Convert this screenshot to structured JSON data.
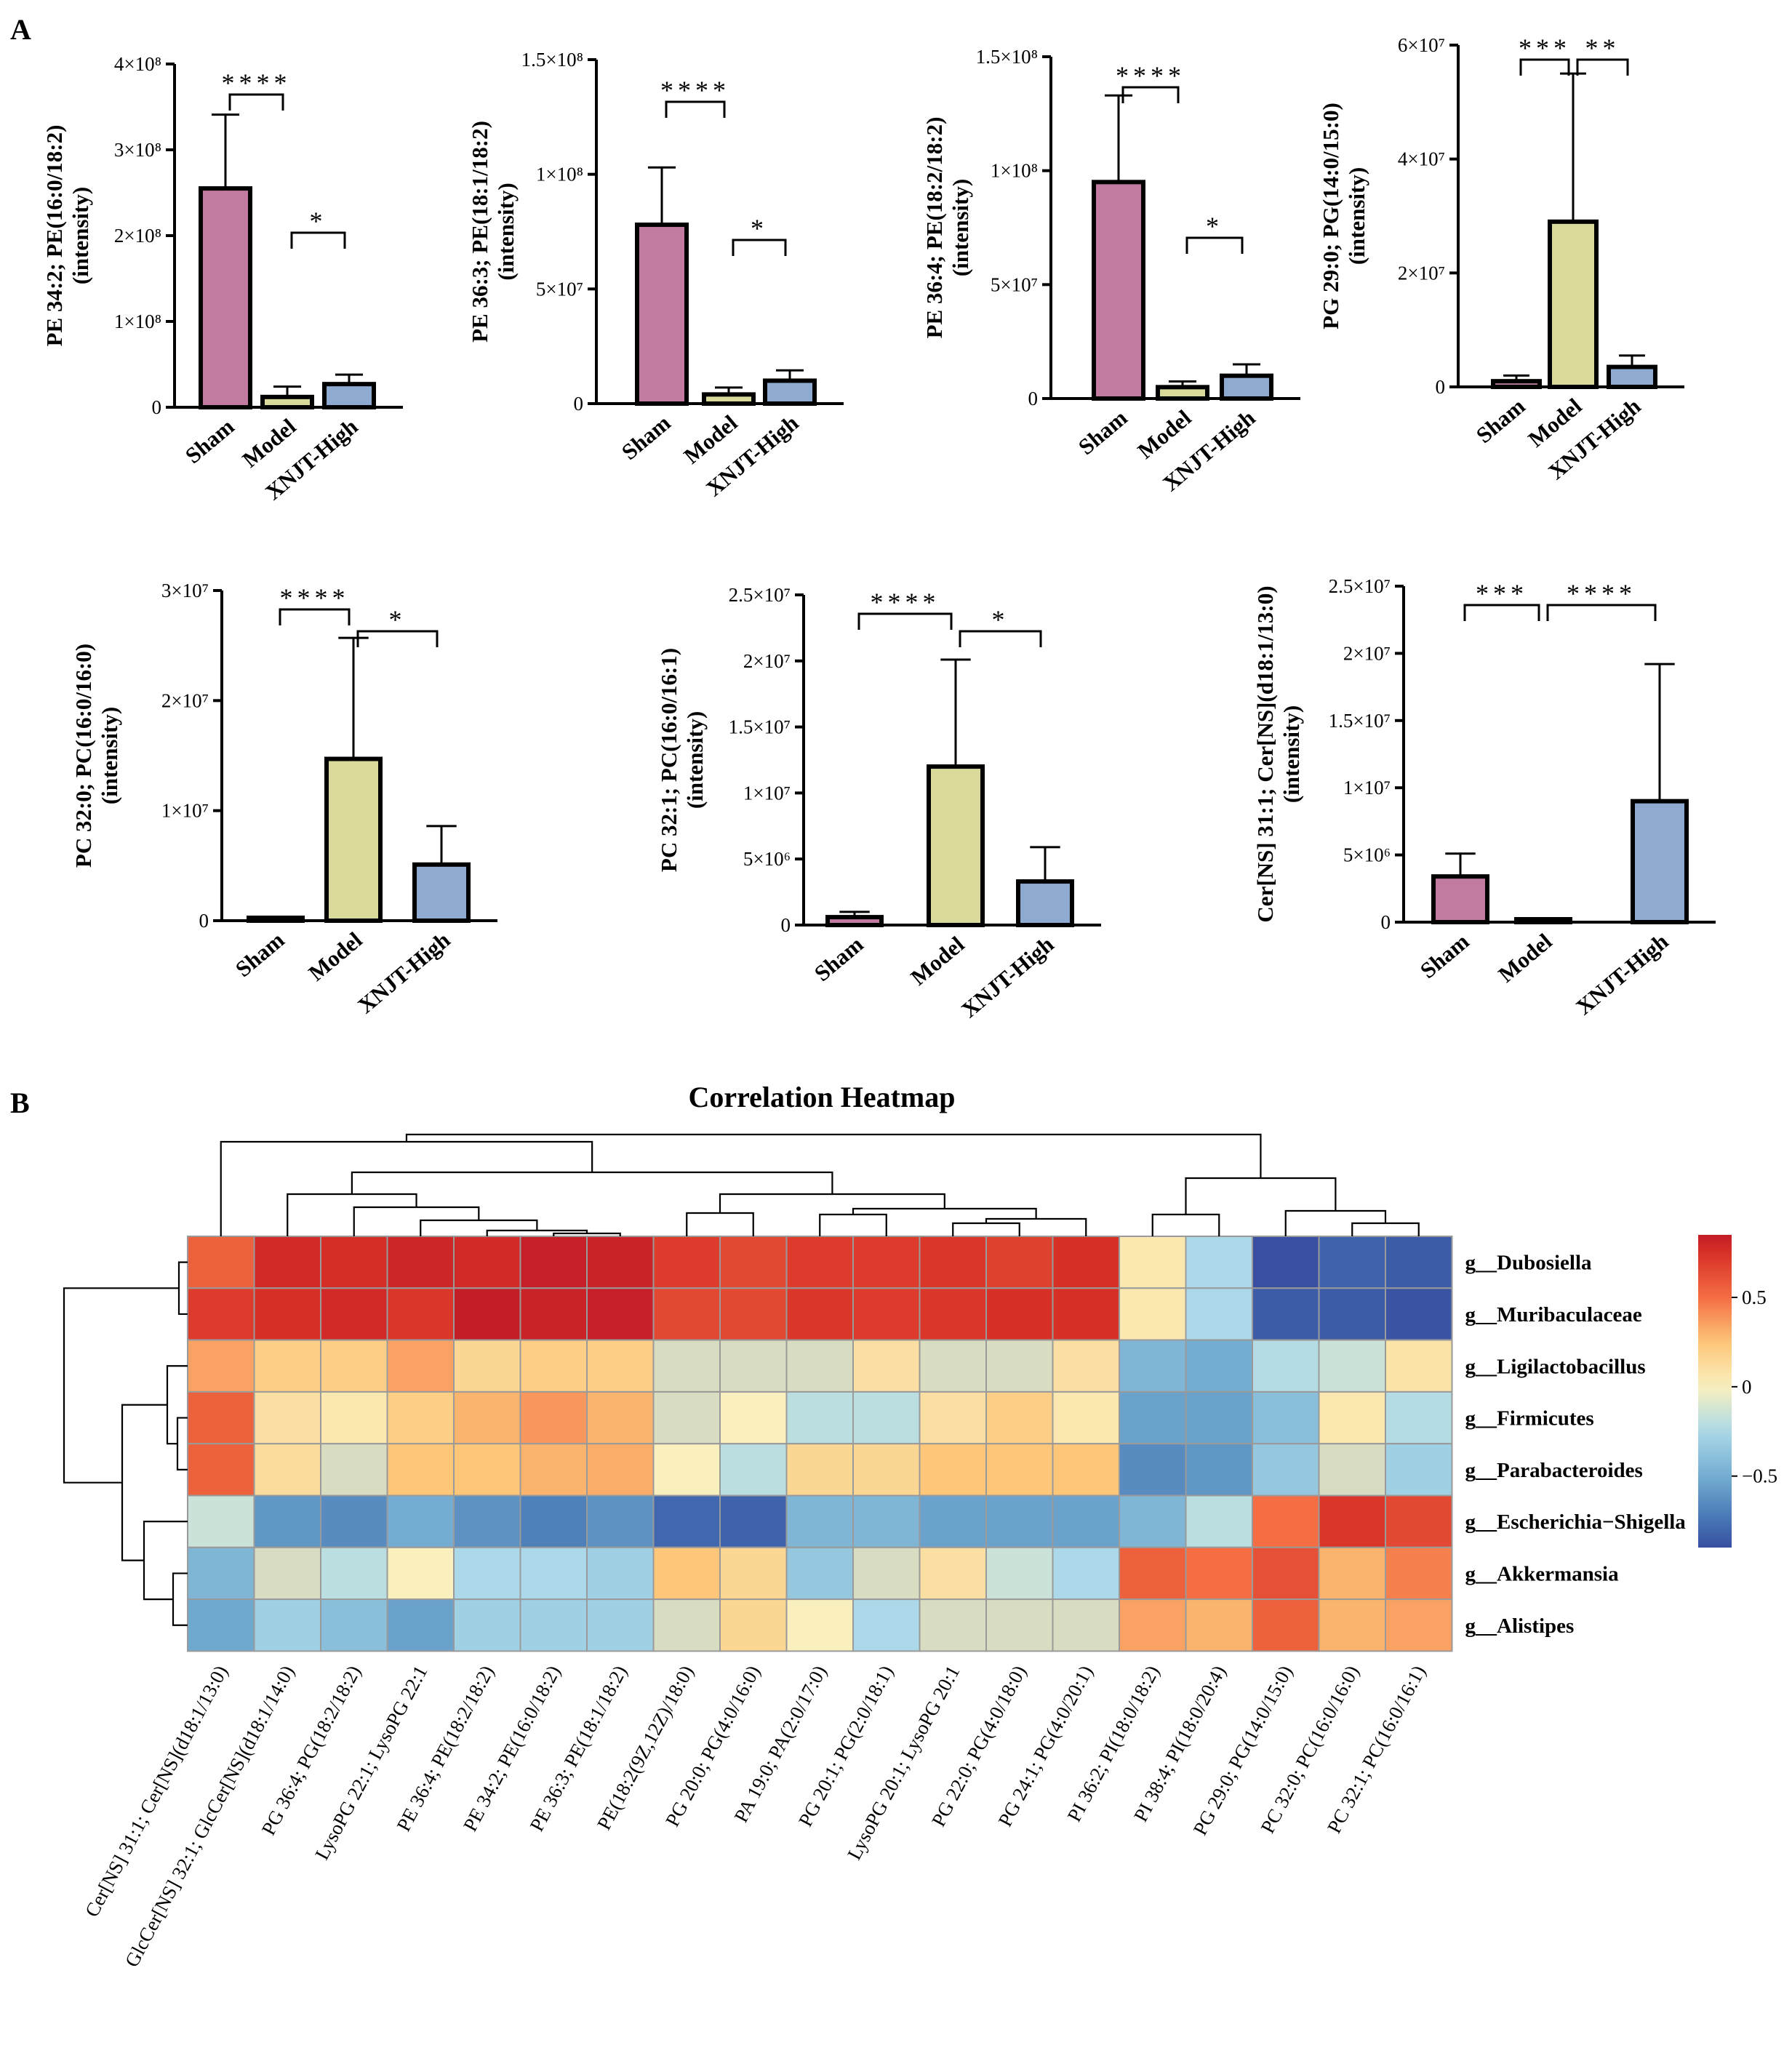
{
  "panel_labels": {
    "a": "A",
    "b": "B"
  },
  "sig_levels": {
    "one": "*",
    "two": "**",
    "three": "***",
    "four": "****"
  },
  "chart_data": [
    {
      "type": "bar",
      "ylabel": [
        "PE 34:2; PE(16:0/18:2)",
        "(intensity)"
      ],
      "categories": [
        "Sham",
        "Model",
        "XNJT-High"
      ],
      "values": [
        255000000.0,
        12000000.0,
        27000000.0
      ],
      "errors": [
        86000000.0,
        12000000.0,
        11000000.0
      ],
      "colors": [
        "#C27BA0",
        "#D9D99B",
        "#8EAAD0"
      ],
      "ylim": [
        0,
        400000000.0
      ],
      "ticks": [
        0,
        100000000.0,
        200000000.0,
        300000000.0,
        400000000.0
      ],
      "tick_labels": [
        "0",
        "1×10⁸",
        "2×10⁸",
        "3×10⁸",
        "4×10⁸"
      ],
      "brackets": [
        {
          "from": 0,
          "to": 1,
          "label": "****"
        },
        {
          "from": 1,
          "to": 2,
          "label": "*"
        }
      ]
    },
    {
      "type": "bar",
      "ylabel": [
        "PE 36:3; PE(18:1/18:2)",
        "(intensity)"
      ],
      "categories": [
        "Sham",
        "Model",
        "XNJT-High"
      ],
      "values": [
        78000000.0,
        4000000.0,
        10000000.0
      ],
      "errors": [
        25000000.0,
        3000000.0,
        4500000.0
      ],
      "colors": [
        "#C27BA0",
        "#D9D99B",
        "#8EAAD0"
      ],
      "ylim": [
        0,
        150000000.0
      ],
      "ticks": [
        0,
        50000000.0,
        100000000.0,
        150000000.0
      ],
      "tick_labels": [
        "0",
        "5×10⁷",
        "1×10⁸",
        "1.5×10⁸"
      ],
      "brackets": [
        {
          "from": 0,
          "to": 1,
          "label": "****"
        },
        {
          "from": 1,
          "to": 2,
          "label": "*"
        }
      ]
    },
    {
      "type": "bar",
      "ylabel": [
        "PE 36:4; PE(18:2/18:2)",
        "(intensity)"
      ],
      "categories": [
        "Sham",
        "Model",
        "XNJT-High"
      ],
      "values": [
        95000000.0,
        5000000.0,
        10000000.0
      ],
      "errors": [
        38000000.0,
        2500000.0,
        5000000.0
      ],
      "colors": [
        "#C27BA0",
        "#D9D99B",
        "#8EAAD0"
      ],
      "ylim": [
        0,
        150000000.0
      ],
      "ticks": [
        0,
        50000000.0,
        100000000.0,
        150000000.0
      ],
      "tick_labels": [
        "0",
        "5×10⁷",
        "1×10⁸",
        "1.5×10⁸"
      ],
      "brackets": [
        {
          "from": 0,
          "to": 1,
          "label": "****"
        },
        {
          "from": 1,
          "to": 2,
          "label": "*"
        }
      ]
    },
    {
      "type": "bar",
      "ylabel": [
        "PG 29:0; PG(14:0/15:0)",
        "(intensity)"
      ],
      "categories": [
        "Sham",
        "Model",
        "XNJT-High"
      ],
      "values": [
        1000000.0,
        29000000.0,
        3500000.0
      ],
      "errors": [
        1000000.0,
        26000000.0,
        2000000.0
      ],
      "colors": [
        "#C27BA0",
        "#D9D99B",
        "#8EAAD0"
      ],
      "ylim": [
        0,
        60000000.0
      ],
      "ticks": [
        0,
        20000000.0,
        40000000.0,
        60000000.0
      ],
      "tick_labels": [
        "0",
        "2×10⁷",
        "4×10⁷",
        "6×10⁷"
      ],
      "brackets": [
        {
          "from": 0,
          "to": 1,
          "label": "***"
        },
        {
          "from": 1,
          "to": 2,
          "label": "**"
        }
      ]
    },
    {
      "type": "bar",
      "ylabel": [
        "PC 32:0; PC(16:0/16:0)",
        "(intensity)"
      ],
      "categories": [
        "Sham",
        "Model",
        "XNJT-High"
      ],
      "values": [
        200000.0,
        14700000.0,
        5100000.0
      ],
      "errors": [
        150000.0,
        11000000.0,
        3500000.0
      ],
      "colors": [
        "#C27BA0",
        "#D9D99B",
        "#8EAAD0"
      ],
      "ylim": [
        0,
        30000000.0
      ],
      "ticks": [
        0,
        10000000.0,
        20000000.0,
        30000000.0
      ],
      "tick_labels": [
        "0",
        "1×10⁷",
        "2×10⁷",
        "3×10⁷"
      ],
      "brackets": [
        {
          "from": 0,
          "to": 1,
          "label": "****"
        },
        {
          "from": 1,
          "to": 2,
          "label": "*"
        }
      ]
    },
    {
      "type": "bar",
      "ylabel": [
        "PC 32:1; PC(16:0/16:1)",
        "(intensity)"
      ],
      "categories": [
        "Sham",
        "Model",
        "XNJT-High"
      ],
      "values": [
        600000.0,
        12000000.0,
        3300000.0
      ],
      "errors": [
        400000.0,
        8100000.0,
        2600000.0
      ],
      "colors": [
        "#C27BA0",
        "#D9D99B",
        "#8EAAD0"
      ],
      "ylim": [
        0,
        25000000.0
      ],
      "ticks": [
        0,
        5000000.0,
        10000000.0,
        15000000.0,
        20000000.0,
        25000000.0
      ],
      "tick_labels": [
        "0",
        "5×10⁶",
        "1×10⁷",
        "1.5×10⁷",
        "2×10⁷",
        "2.5×10⁷"
      ],
      "brackets": [
        {
          "from": 0,
          "to": 1,
          "label": "****"
        },
        {
          "from": 1,
          "to": 2,
          "label": "*"
        }
      ]
    },
    {
      "type": "bar",
      "ylabel": [
        "Cer[NS] 31:1; Cer[NS](d18:1/13:0)",
        "(intensity)"
      ],
      "categories": [
        "Sham",
        "Model",
        "XNJT-High"
      ],
      "values": [
        3400000.0,
        100000.0,
        9000000.0
      ],
      "errors": [
        1700000.0,
        100000.0,
        10200000.0
      ],
      "colors": [
        "#C27BA0",
        "#D9D99B",
        "#8EAAD0"
      ],
      "ylim": [
        0,
        25000000.0
      ],
      "ticks": [
        0,
        5000000.0,
        10000000.0,
        15000000.0,
        20000000.0,
        25000000.0
      ],
      "tick_labels": [
        "0",
        "5×10⁶",
        "1×10⁷",
        "1.5×10⁷",
        "2×10⁷",
        "2.5×10⁷"
      ],
      "brackets": [
        {
          "from": 0,
          "to": 1,
          "label": "***"
        },
        {
          "from": 1,
          "to": 2,
          "label": "****"
        }
      ]
    },
    {
      "type": "heatmap",
      "title": "Correlation Heatmap",
      "rows": [
        "g__Dubosiella",
        "g__Muribaculaceae",
        "g__Ligilactobacillus",
        "g__Firmicutes",
        "g__Parabacteroides",
        "g__Escherichia−Shigella",
        "g__Akkermansia",
        "g__Alistipes"
      ],
      "columns": [
        "Cer[NS] 31:1; Cer[NS](d18:1/13:0)",
        "GlcCer[NS] 32:1; GlcCer[NS](d18:1/14:0)",
        "PG 36:4; PG(18:2/18:2)",
        "LysoPG 22:1; LysoPG 22:1",
        "PE 36:4; PE(18:2/18:2)",
        "PE 34:2; PE(16:0/18:2)",
        "PE 36:3; PE(18:1/18:2)",
        "PE(18:2(9Z,12Z)/18:0)",
        "PG 20:0; PG(4:0/16:0)",
        "PA 19:0; PA(2:0/17:0)",
        "PG 20:1; PG(2:0/18:1)",
        "LysoPG 20:1; LysoPG 20:1",
        "PG 22:0; PG(4:0/18:0)",
        "PG 24:1; PG(4:0/20:1)",
        "PI 36:2; PI(18:0/18:2)",
        "PI 38:4; PI(18:0/20:4)",
        "PG 29:0; PG(14:0/15:0)",
        "PC 32:0; PC(16:0/16:0)",
        "PC 32:1; PC(16:0/16:1)"
      ],
      "values": [
        [
          0.55,
          0.78,
          0.76,
          0.8,
          0.78,
          0.84,
          0.82,
          0.7,
          0.65,
          0.7,
          0.7,
          0.72,
          0.68,
          0.75,
          0.05,
          -0.25,
          -0.9,
          -0.82,
          -0.85
        ],
        [
          0.7,
          0.75,
          0.78,
          0.72,
          0.85,
          0.82,
          0.84,
          0.65,
          0.65,
          0.72,
          0.7,
          0.72,
          0.75,
          0.75,
          0.05,
          -0.25,
          -0.85,
          -0.85,
          -0.88
        ],
        [
          0.35,
          0.2,
          0.2,
          0.35,
          0.15,
          0.2,
          0.2,
          -0.05,
          -0.08,
          -0.05,
          0.1,
          -0.05,
          -0.02,
          0.1,
          -0.45,
          -0.5,
          -0.22,
          -0.15,
          0.08
        ],
        [
          0.55,
          0.1,
          0.05,
          0.2,
          0.3,
          0.38,
          0.3,
          -0.05,
          0.0,
          -0.2,
          -0.2,
          0.1,
          0.2,
          0.05,
          -0.55,
          -0.55,
          -0.4,
          0.05,
          -0.22
        ],
        [
          0.55,
          0.12,
          -0.1,
          0.25,
          0.25,
          0.3,
          0.32,
          0.0,
          -0.2,
          0.15,
          0.15,
          0.25,
          0.25,
          0.25,
          -0.65,
          -0.6,
          -0.35,
          -0.1,
          -0.3
        ],
        [
          -0.15,
          -0.6,
          -0.65,
          -0.5,
          -0.62,
          -0.7,
          -0.62,
          -0.8,
          -0.82,
          -0.45,
          -0.45,
          -0.55,
          -0.55,
          -0.55,
          -0.45,
          -0.2,
          0.5,
          0.72,
          0.65
        ],
        [
          -0.45,
          -0.05,
          -0.2,
          0.0,
          -0.25,
          -0.25,
          -0.3,
          0.25,
          0.15,
          -0.35,
          -0.05,
          0.1,
          -0.15,
          -0.25,
          0.55,
          0.5,
          0.62,
          0.3,
          0.45
        ],
        [
          -0.52,
          -0.3,
          -0.4,
          -0.55,
          -0.3,
          -0.3,
          -0.3,
          -0.05,
          0.15,
          0.0,
          -0.25,
          -0.05,
          -0.03,
          -0.05,
          0.35,
          0.3,
          0.55,
          0.3,
          0.35
        ]
      ],
      "colorbar": {
        "range": [
          -0.9,
          0.85
        ],
        "ticks": [
          0.5,
          0,
          -0.5
        ],
        "tick_labels": [
          "0.5",
          "0",
          "−0.5"
        ]
      }
    }
  ]
}
